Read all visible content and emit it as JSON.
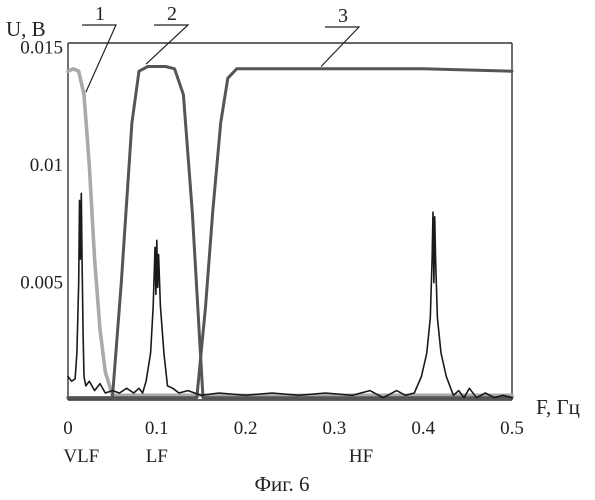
{
  "chart_data": {
    "type": "line",
    "ylabel": "U, В",
    "xlabel": "F, Гц",
    "caption": "Фиг. 6",
    "xlim": [
      0,
      0.5
    ],
    "ylim": [
      0,
      0.0152
    ],
    "x_ticks": [
      "0",
      "0.1",
      "0.2",
      "0.3",
      "0.4",
      "0.5"
    ],
    "x_tick_values": [
      0,
      0.1,
      0.2,
      0.3,
      0.4,
      0.5
    ],
    "y_ticks": [
      "0.005",
      "0.01",
      "0.015"
    ],
    "y_tick_values": [
      0.005,
      0.01,
      0.015
    ],
    "band_labels": [
      {
        "text": "VLF",
        "x": 0.015
      },
      {
        "text": "LF",
        "x": 0.1
      },
      {
        "text": "HF",
        "x": 0.33
      }
    ],
    "callouts": [
      {
        "label": "1",
        "series": 0,
        "x": 0.02,
        "y": 0.0131
      },
      {
        "label": "2",
        "series": 1,
        "x": 0.088,
        "y": 0.0143
      },
      {
        "label": "3",
        "series": 2,
        "x": 0.285,
        "y": 0.0142
      }
    ],
    "grid": false,
    "series": [
      {
        "color": "#aaaaaa",
        "x": [
          0.0,
          0.006,
          0.012,
          0.018,
          0.024,
          0.03,
          0.036,
          0.042,
          0.05,
          0.14,
          0.5
        ],
        "values": [
          0.014,
          0.0141,
          0.014,
          0.013,
          0.01,
          0.006,
          0.003,
          0.0012,
          0.0002,
          0.0002,
          0.0002
        ]
      },
      {
        "color": "#555555",
        "x": [
          0.0,
          0.05,
          0.06,
          0.072,
          0.08,
          0.09,
          0.11,
          0.12,
          0.13,
          0.14,
          0.152,
          0.16,
          0.5
        ],
        "values": [
          0.0001,
          0.0001,
          0.005,
          0.0118,
          0.014,
          0.0142,
          0.0142,
          0.0141,
          0.013,
          0.008,
          0.0001,
          0.0001,
          0.0001
        ]
      },
      {
        "color": "#555555",
        "x": [
          0.0,
          0.145,
          0.155,
          0.163,
          0.172,
          0.18,
          0.19,
          0.3,
          0.4,
          0.5
        ],
        "values": [
          0.0001,
          0.0001,
          0.004,
          0.008,
          0.0118,
          0.0137,
          0.0141,
          0.0141,
          0.0141,
          0.014
        ]
      },
      {
        "color": "#1a1a1a",
        "x": [
          0.0,
          0.004,
          0.008,
          0.01,
          0.012,
          0.013,
          0.014,
          0.015,
          0.016,
          0.017,
          0.018,
          0.02,
          0.024,
          0.03,
          0.036,
          0.042,
          0.05,
          0.058,
          0.066,
          0.074,
          0.08,
          0.084,
          0.088,
          0.093,
          0.096,
          0.098,
          0.099,
          0.1,
          0.101,
          0.102,
          0.104,
          0.108,
          0.112,
          0.118,
          0.125,
          0.135,
          0.15,
          0.17,
          0.2,
          0.23,
          0.26,
          0.29,
          0.32,
          0.34,
          0.355,
          0.37,
          0.38,
          0.39,
          0.398,
          0.404,
          0.408,
          0.41,
          0.411,
          0.412,
          0.413,
          0.414,
          0.416,
          0.42,
          0.426,
          0.434,
          0.44,
          0.446,
          0.452,
          0.46,
          0.47,
          0.48,
          0.49,
          0.5
        ],
        "values": [
          0.001,
          0.0008,
          0.0009,
          0.002,
          0.005,
          0.0085,
          0.006,
          0.0088,
          0.0055,
          0.0028,
          0.001,
          0.0006,
          0.0008,
          0.0004,
          0.0007,
          0.0003,
          0.0004,
          0.0003,
          0.0005,
          0.0003,
          0.0005,
          0.0003,
          0.0008,
          0.002,
          0.004,
          0.0065,
          0.0045,
          0.0068,
          0.0048,
          0.0062,
          0.004,
          0.002,
          0.0006,
          0.0005,
          0.0003,
          0.0004,
          0.0002,
          0.0003,
          0.0002,
          0.0003,
          0.0002,
          0.0003,
          0.0002,
          0.0004,
          0.0001,
          0.0004,
          0.0002,
          0.0003,
          0.001,
          0.002,
          0.0035,
          0.006,
          0.008,
          0.005,
          0.0078,
          0.006,
          0.0035,
          0.002,
          0.001,
          0.0002,
          0.0004,
          0.0001,
          0.0005,
          0.0001,
          0.0003,
          0.0001,
          0.0002,
          0.0001
        ]
      }
    ]
  }
}
